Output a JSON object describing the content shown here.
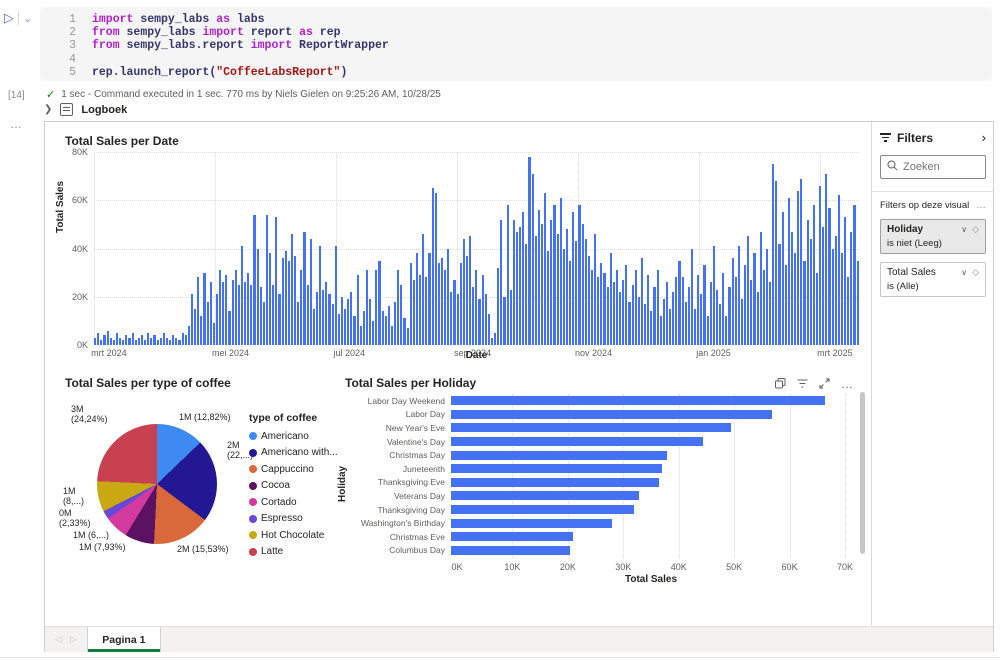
{
  "notebook": {
    "execution_count": "[14]",
    "run_status": "1 sec - Command executed in 1 sec. 770 ms by Niels Gielen on 9:25:26 AM, 10/28/25",
    "logboek_label": "Logboek",
    "code_lines": [
      {
        "n": "1",
        "tokens": [
          [
            "import",
            "kw"
          ],
          [
            " sempy_labs ",
            "id"
          ],
          [
            "as",
            "kw"
          ],
          [
            " labs",
            "id"
          ]
        ]
      },
      {
        "n": "2",
        "tokens": [
          [
            "from",
            "kw"
          ],
          [
            " sempy_labs ",
            "id"
          ],
          [
            "import",
            "kw"
          ],
          [
            " report ",
            "id"
          ],
          [
            "as",
            "kw"
          ],
          [
            " rep",
            "id"
          ]
        ]
      },
      {
        "n": "3",
        "tokens": [
          [
            "from",
            "kw"
          ],
          [
            " sempy_labs.report ",
            "id"
          ],
          [
            "import",
            "kw"
          ],
          [
            " ReportWrapper",
            "id"
          ]
        ]
      },
      {
        "n": "4",
        "tokens": []
      },
      {
        "n": "5",
        "tokens": [
          [
            "rep.launch_report(",
            "id"
          ],
          [
            "\"CoffeeLabsReport\"",
            "str"
          ],
          [
            ")",
            "id"
          ]
        ]
      }
    ]
  },
  "report": {
    "accent": "#4472f2",
    "filters_pane": {
      "title": "Filters",
      "search_placeholder": "Zoeken",
      "section_label": "Filters op deze visual",
      "more_label": "...",
      "cards": [
        {
          "name": "Holiday",
          "condition": "is niet (Leeg)"
        },
        {
          "name": "Total Sales",
          "condition": "is (Alle)"
        }
      ]
    },
    "page_tab": "Pagina 1"
  },
  "chart_data": [
    {
      "type": "bar",
      "title": "Total Sales per Date",
      "xlabel": "Date",
      "ylabel": "Total Sales",
      "ylim": [
        0,
        80
      ],
      "y_ticks": [
        "0K",
        "20K",
        "40K",
        "60K",
        "80K"
      ],
      "x_ticks": [
        "mrt 2024",
        "mei 2024",
        "jul 2024",
        "sep 2024",
        "nov 2024",
        "jan 2025",
        "mrt 2025"
      ],
      "unit": "K",
      "values": [
        3,
        5,
        2,
        4,
        6,
        3,
        2,
        5,
        3,
        2,
        4,
        3,
        5,
        2,
        3,
        4,
        2,
        5,
        3,
        4,
        2,
        3,
        5,
        3,
        2,
        4,
        3,
        2,
        5,
        4,
        8,
        21,
        15,
        28,
        12,
        30,
        18,
        26,
        9,
        21,
        31,
        26,
        29,
        14,
        27,
        31,
        25,
        41,
        26,
        30,
        25,
        54,
        40,
        24,
        18,
        54,
        38,
        25,
        53,
        21,
        36,
        39,
        35,
        46,
        37,
        18,
        31,
        47,
        25,
        44,
        15,
        22,
        41,
        23,
        26,
        21,
        17,
        41,
        13,
        20,
        15,
        19,
        22,
        12,
        29,
        8,
        14,
        31,
        19,
        10,
        31,
        35,
        14,
        12,
        16,
        8,
        18,
        31,
        25,
        11,
        7,
        34,
        27,
        38,
        29,
        46,
        28,
        38,
        65,
        63,
        34,
        36,
        31,
        40,
        22,
        27,
        21,
        34,
        44,
        37,
        45,
        24,
        31,
        19,
        29,
        21,
        13,
        3,
        5,
        32,
        52,
        20,
        58,
        23,
        52,
        47,
        49,
        55,
        42,
        78,
        71,
        45,
        56,
        50,
        63,
        39,
        52,
        58,
        46,
        61,
        40,
        48,
        35,
        55,
        43,
        58,
        50,
        44,
        37,
        31,
        46,
        28,
        34,
        30,
        24,
        38,
        26,
        31,
        22,
        27,
        33,
        18,
        25,
        31,
        20,
        36,
        17,
        29,
        14,
        24,
        31,
        12,
        19,
        26,
        15,
        22,
        28,
        35,
        28,
        18,
        24,
        40,
        15,
        29,
        21,
        33,
        12,
        26,
        41,
        23,
        17,
        30,
        12,
        24,
        36,
        28,
        41,
        19,
        33,
        45,
        27,
        38,
        22,
        47,
        31,
        40,
        26,
        75,
        68,
        42,
        55,
        33,
        61,
        47,
        38,
        64,
        69,
        35,
        52,
        44,
        58,
        30,
        66,
        49,
        71,
        57,
        40,
        45,
        62,
        38,
        53,
        28,
        47,
        58,
        35
      ]
    },
    {
      "type": "pie",
      "title": "Total Sales per type of coffee",
      "legend_title": "type of coffee",
      "legend_position": "right",
      "slices": [
        {
          "label": "Americano",
          "legend": "Americano",
          "pct": 12.82,
          "color": "#3d8af2",
          "callout": "1M (12,82%)"
        },
        {
          "label": "Americano with milk",
          "legend": "Americano with...",
          "pct": 22.42,
          "color": "#231794",
          "callout": "2M\n(22,...)"
        },
        {
          "label": "Cappuccino",
          "legend": "Cappuccino",
          "pct": 15.53,
          "color": "#d9693a",
          "callout": "2M (15,53%)"
        },
        {
          "label": "Cocoa",
          "legend": "Cocoa",
          "pct": 7.93,
          "color": "#5c1263",
          "callout": "1M (7,93%)"
        },
        {
          "label": "Cortado",
          "legend": "Cortado",
          "pct": 6.46,
          "color": "#d23a9d",
          "callout": "1M (6,...)"
        },
        {
          "label": "Espresso",
          "legend": "Espresso",
          "pct": 2.33,
          "color": "#6a48d7",
          "callout": "0M\n(2,33%)"
        },
        {
          "label": "Hot Chocolate",
          "legend": "Hot Chocolate",
          "pct": 8.24,
          "color": "#c9a812",
          "callout": "1M\n(8,...)"
        },
        {
          "label": "Latte",
          "legend": "Latte",
          "pct": 24.24,
          "color": "#c84150",
          "callout": "3M\n(24,24%)"
        }
      ]
    },
    {
      "type": "bar",
      "orientation": "horizontal",
      "title": "Total Sales per Holiday",
      "xlabel": "Total Sales",
      "ylabel": "Holiday",
      "xlim": [
        0,
        70
      ],
      "x_ticks": [
        "0K",
        "10K",
        "20K",
        "30K",
        "40K",
        "50K",
        "60K",
        "70K"
      ],
      "unit": "K",
      "categories": [
        "Labor Day Weekend",
        "Labor Day",
        "New Year's Eve",
        "Valentine's Day",
        "Christmas Day",
        "Juneteenth",
        "Thanksgiving Eve",
        "Veterans Day",
        "Thanksgiving Day",
        "Washington's Birthday",
        "Christmas Eve",
        "Columbus Day"
      ],
      "values": [
        67.5,
        58,
        50.5,
        45.5,
        39,
        38,
        37.5,
        34,
        33,
        29,
        22,
        21.5
      ],
      "toolbar_icons": [
        "copy-icon",
        "filter-icon",
        "focus-mode-icon",
        "more-options-icon"
      ]
    }
  ]
}
